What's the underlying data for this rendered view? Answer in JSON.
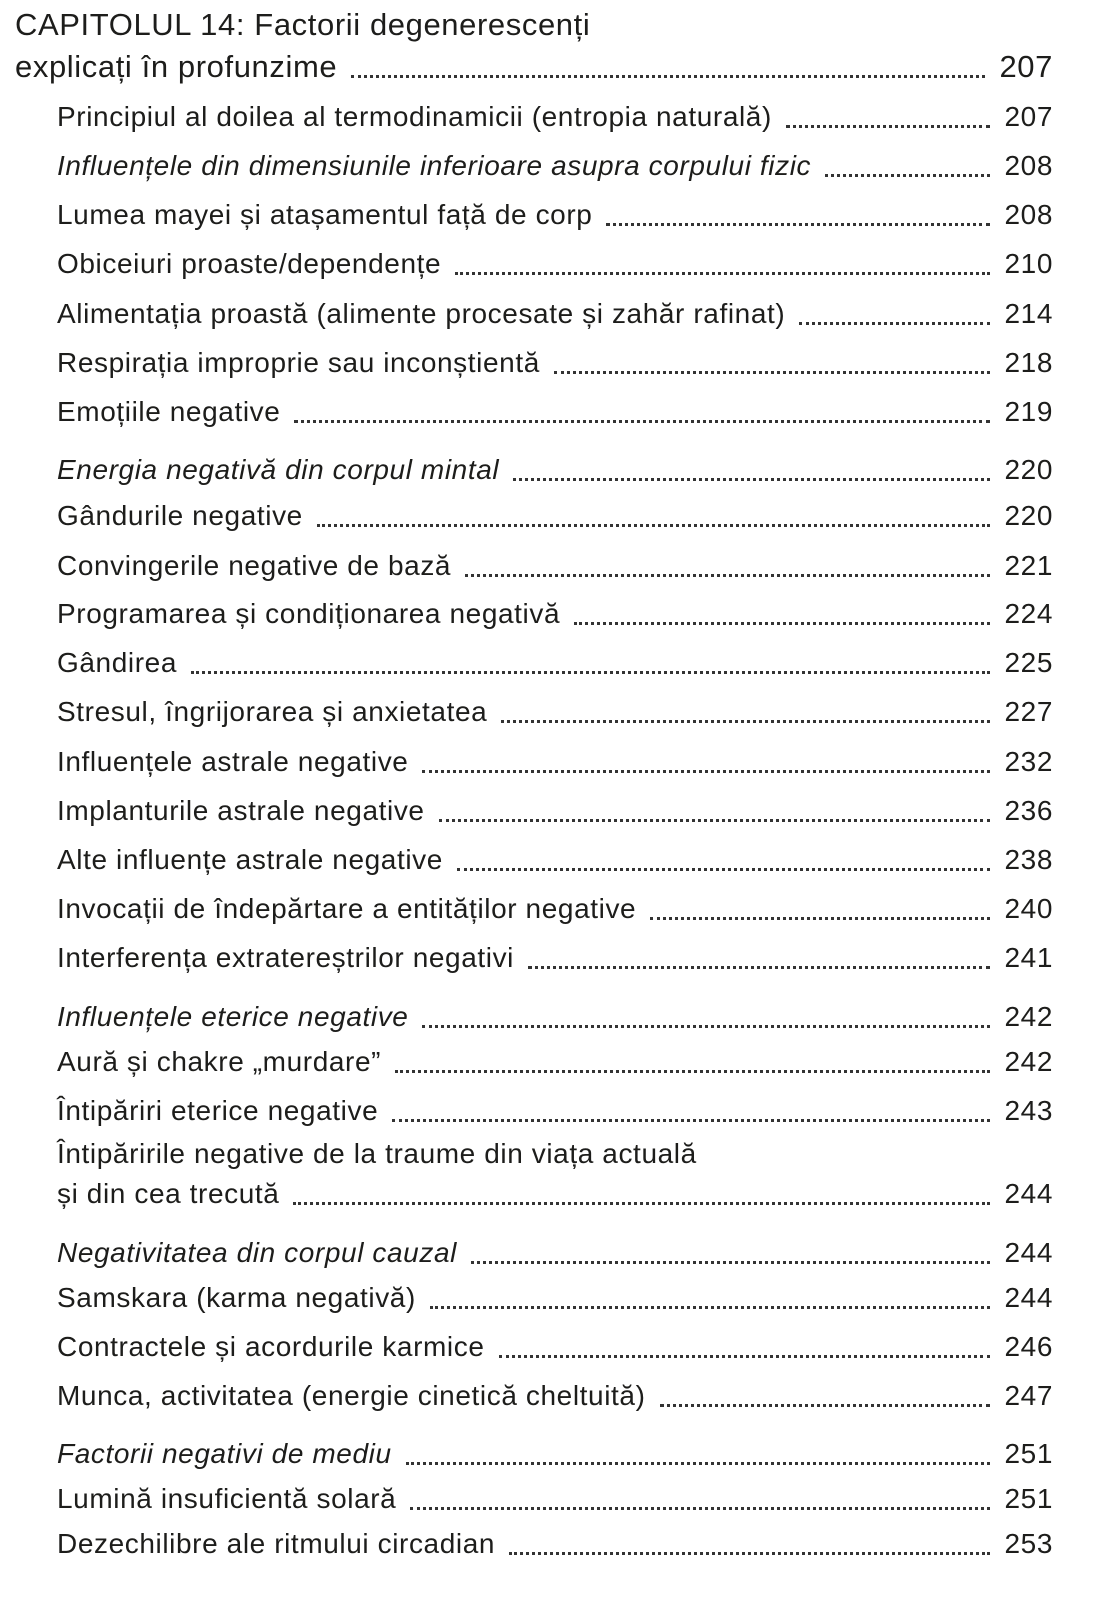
{
  "chapter": {
    "label": "CAPITOLUL 14:",
    "title_line1": "Factorii degenerescenți",
    "title_line2": "explicați în profunzime",
    "page": "207"
  },
  "entries": [
    {
      "text": "Principiul al doilea al termodinamicii (entropia naturală)",
      "page": "207",
      "italic": false
    },
    {
      "text": "Influențele din dimensiunile inferioare asupra corpului fizic",
      "page": "208",
      "italic": true
    },
    {
      "text": "Lumea mayei și atașamentul față de corp",
      "page": "208",
      "italic": false
    },
    {
      "text": "Obiceiuri proaste/dependențe",
      "page": "210",
      "italic": false
    },
    {
      "text": "Alimentația proastă (alimente procesate și zahăr rafinat)",
      "page": "214",
      "italic": false
    },
    {
      "text": "Respirația improprie sau inconștientă",
      "page": "218",
      "italic": false
    },
    {
      "text": "Emoțiile negative",
      "page": "219",
      "italic": false
    },
    {
      "text": "Energia negativă din corpul mintal",
      "page": "220",
      "italic": true
    },
    {
      "text": "Gândurile negative",
      "page": "220",
      "italic": false
    },
    {
      "text": "Convingerile negative de bază",
      "page": "221",
      "italic": false
    },
    {
      "text": "Programarea și condiționarea negativă",
      "page": "224",
      "italic": false
    },
    {
      "text": "Gândirea",
      "page": "225",
      "italic": false
    },
    {
      "text": "Stresul, îngrijorarea și anxietatea",
      "page": "227",
      "italic": false
    },
    {
      "text": "Influențele astrale negative",
      "page": "232",
      "italic": false
    },
    {
      "text": "Implanturile astrale negative",
      "page": "236",
      "italic": false
    },
    {
      "text": "Alte influențe astrale negative",
      "page": "238",
      "italic": false
    },
    {
      "text": "Invocații de îndepărtare a entităților negative",
      "page": "240",
      "italic": false
    },
    {
      "text": "Interferența extratereștrilor negativi",
      "page": "241",
      "italic": false
    },
    {
      "text": "Influențele eterice negative",
      "page": "242",
      "italic": true
    },
    {
      "text": "Aură și chakre „murdare”",
      "page": "242",
      "italic": false
    },
    {
      "text": "Întipăriri eterice negative",
      "page": "243",
      "italic": false
    },
    {
      "text": "Întipăririle negative de la traume din viața actuală",
      "text_line2": "și din cea trecută",
      "page": "244",
      "italic": false
    },
    {
      "text": "Negativitatea din corpul cauzal",
      "page": "244",
      "italic": true
    },
    {
      "text": "Samskara (karma negativă)",
      "page": "244",
      "italic": false
    },
    {
      "text": "Contractele și acordurile karmice",
      "page": "246",
      "italic": false
    },
    {
      "text": "Munca, activitatea (energie cinetică cheltuită)",
      "page": "247",
      "italic": false
    },
    {
      "text": "Factorii negativi de mediu",
      "page": "251",
      "italic": true
    },
    {
      "text": "Lumină insuficientă solară",
      "page": "251",
      "italic": false
    },
    {
      "text": "Dezechilibre ale ritmului circadian",
      "page": "253",
      "italic": false
    }
  ]
}
